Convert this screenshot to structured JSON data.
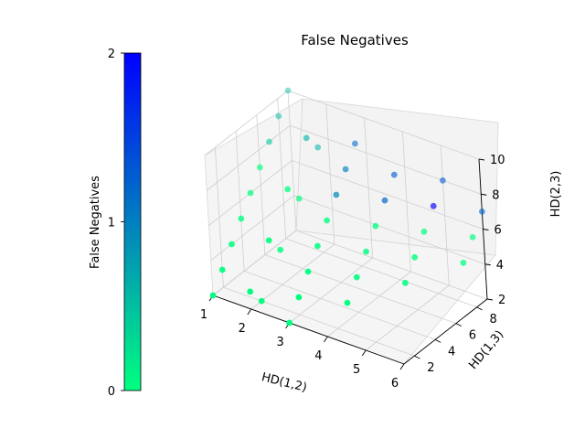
{
  "chart_data": {
    "type": "scatter",
    "projection": "3d",
    "title": "False Negatives",
    "xlabel": "HD(1,2)",
    "ylabel": "HD(1,3)",
    "zlabel": "HD(2,3)",
    "xlim": [
      1,
      6
    ],
    "ylim": [
      1,
      9
    ],
    "zlim": [
      2,
      10
    ],
    "xticks": [
      "1",
      "2",
      "3",
      "4",
      "5",
      "6"
    ],
    "yticks": [
      "2",
      "4",
      "6",
      "8"
    ],
    "zticks": [
      "2",
      "4",
      "6",
      "8",
      "10"
    ],
    "grid": true,
    "colormap": "winter_r",
    "colorbar": {
      "label": "False Negatives",
      "ticks": [
        "0",
        "1",
        "2"
      ],
      "range": [
        0,
        2
      ],
      "color_low": "#00ff80",
      "color_high": "#0000ff",
      "placement": "left"
    },
    "points": [
      {
        "x": 1,
        "y": 1,
        "z": 2,
        "c": 0
      },
      {
        "x": 1,
        "y": 2,
        "z": 3,
        "c": 0
      },
      {
        "x": 1,
        "y": 3,
        "z": 4,
        "c": 0
      },
      {
        "x": 1,
        "y": 4,
        "z": 5,
        "c": 0
      },
      {
        "x": 1,
        "y": 5,
        "z": 6,
        "c": 0
      },
      {
        "x": 1,
        "y": 6,
        "z": 7,
        "c": 0
      },
      {
        "x": 1,
        "y": 7,
        "z": 8,
        "c": 0.4
      },
      {
        "x": 1,
        "y": 8,
        "z": 9,
        "c": 0.5
      },
      {
        "x": 1,
        "y": 9,
        "z": 10,
        "c": 0.5
      },
      {
        "x": 2,
        "y": 1,
        "z": 3,
        "c": 0
      },
      {
        "x": 2,
        "y": 2,
        "z": 2,
        "c": 0
      },
      {
        "x": 2,
        "y": 3,
        "z": 5,
        "c": 0
      },
      {
        "x": 2,
        "y": 4,
        "z": 4,
        "c": 0
      },
      {
        "x": 2,
        "y": 5,
        "z": 7,
        "c": 0
      },
      {
        "x": 2,
        "y": 6,
        "z": 6,
        "c": 0
      },
      {
        "x": 2,
        "y": 7,
        "z": 9,
        "c": 0.6
      },
      {
        "x": 2,
        "y": 8,
        "z": 8,
        "c": 0.6
      },
      {
        "x": 3,
        "y": 1,
        "z": 2,
        "c": 0
      },
      {
        "x": 3,
        "y": 2,
        "z": 3,
        "c": 0
      },
      {
        "x": 3,
        "y": 3,
        "z": 4,
        "c": 0
      },
      {
        "x": 3,
        "y": 4,
        "z": 5,
        "c": 0
      },
      {
        "x": 3,
        "y": 5,
        "z": 6,
        "c": 0
      },
      {
        "x": 3,
        "y": 6,
        "z": 7,
        "c": 0.9
      },
      {
        "x": 3,
        "y": 7,
        "z": 8,
        "c": 1.0
      },
      {
        "x": 3,
        "y": 8,
        "z": 9,
        "c": 1.2
      },
      {
        "x": 4,
        "y": 3,
        "z": 3,
        "c": 0
      },
      {
        "x": 4,
        "y": 4,
        "z": 4,
        "c": 0
      },
      {
        "x": 4,
        "y": 5,
        "z": 5,
        "c": 0
      },
      {
        "x": 4,
        "y": 6,
        "z": 6,
        "c": 0
      },
      {
        "x": 4,
        "y": 7,
        "z": 7,
        "c": 1.2
      },
      {
        "x": 4,
        "y": 8,
        "z": 8,
        "c": 1.3
      },
      {
        "x": 5,
        "y": 5,
        "z": 4,
        "c": 0
      },
      {
        "x": 5,
        "y": 6,
        "z": 5,
        "c": 0
      },
      {
        "x": 5,
        "y": 7,
        "z": 6,
        "c": 0
      },
      {
        "x": 5,
        "y": 8,
        "z": 7,
        "c": 2
      },
      {
        "x": 5,
        "y": 9,
        "z": 8,
        "c": 1.3
      },
      {
        "x": 6,
        "y": 7,
        "z": 5,
        "c": 0
      },
      {
        "x": 6,
        "y": 8,
        "z": 6,
        "c": 0
      },
      {
        "x": 6,
        "y": 9,
        "z": 7,
        "c": 1.2
      }
    ]
  }
}
